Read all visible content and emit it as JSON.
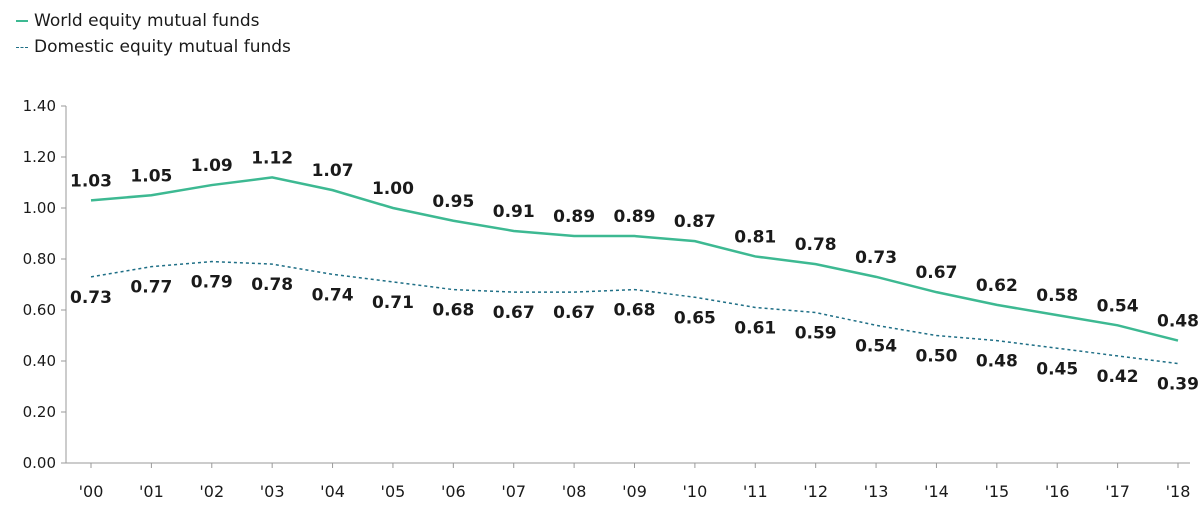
{
  "chart_data": {
    "type": "line",
    "categories": [
      "'00",
      "'01",
      "'02",
      "'03",
      "'04",
      "'05",
      "'06",
      "'07",
      "'08",
      "'09",
      "'10",
      "'11",
      "'12",
      "'13",
      "'14",
      "'15",
      "'16",
      "'17",
      "'18"
    ],
    "series": [
      {
        "name": "World equity mutual funds",
        "color": "#3db992",
        "style": "solid",
        "values": [
          1.03,
          1.05,
          1.09,
          1.12,
          1.07,
          1.0,
          0.95,
          0.91,
          0.89,
          0.89,
          0.87,
          0.81,
          0.78,
          0.73,
          0.67,
          0.62,
          0.58,
          0.54,
          0.48
        ]
      },
      {
        "name": "Domestic equity mutual funds",
        "color": "#1f6f86",
        "style": "dashed",
        "values": [
          0.73,
          0.77,
          0.79,
          0.78,
          0.74,
          0.71,
          0.68,
          0.67,
          0.67,
          0.68,
          0.65,
          0.61,
          0.59,
          0.54,
          0.5,
          0.48,
          0.45,
          0.42,
          0.39
        ]
      }
    ],
    "yticks": [
      "0.00",
      "0.20",
      "0.40",
      "0.60",
      "0.80",
      "1.00",
      "1.20",
      "1.40"
    ],
    "ylim": [
      0,
      1.4
    ],
    "legend": "top-left",
    "grid": false
  }
}
